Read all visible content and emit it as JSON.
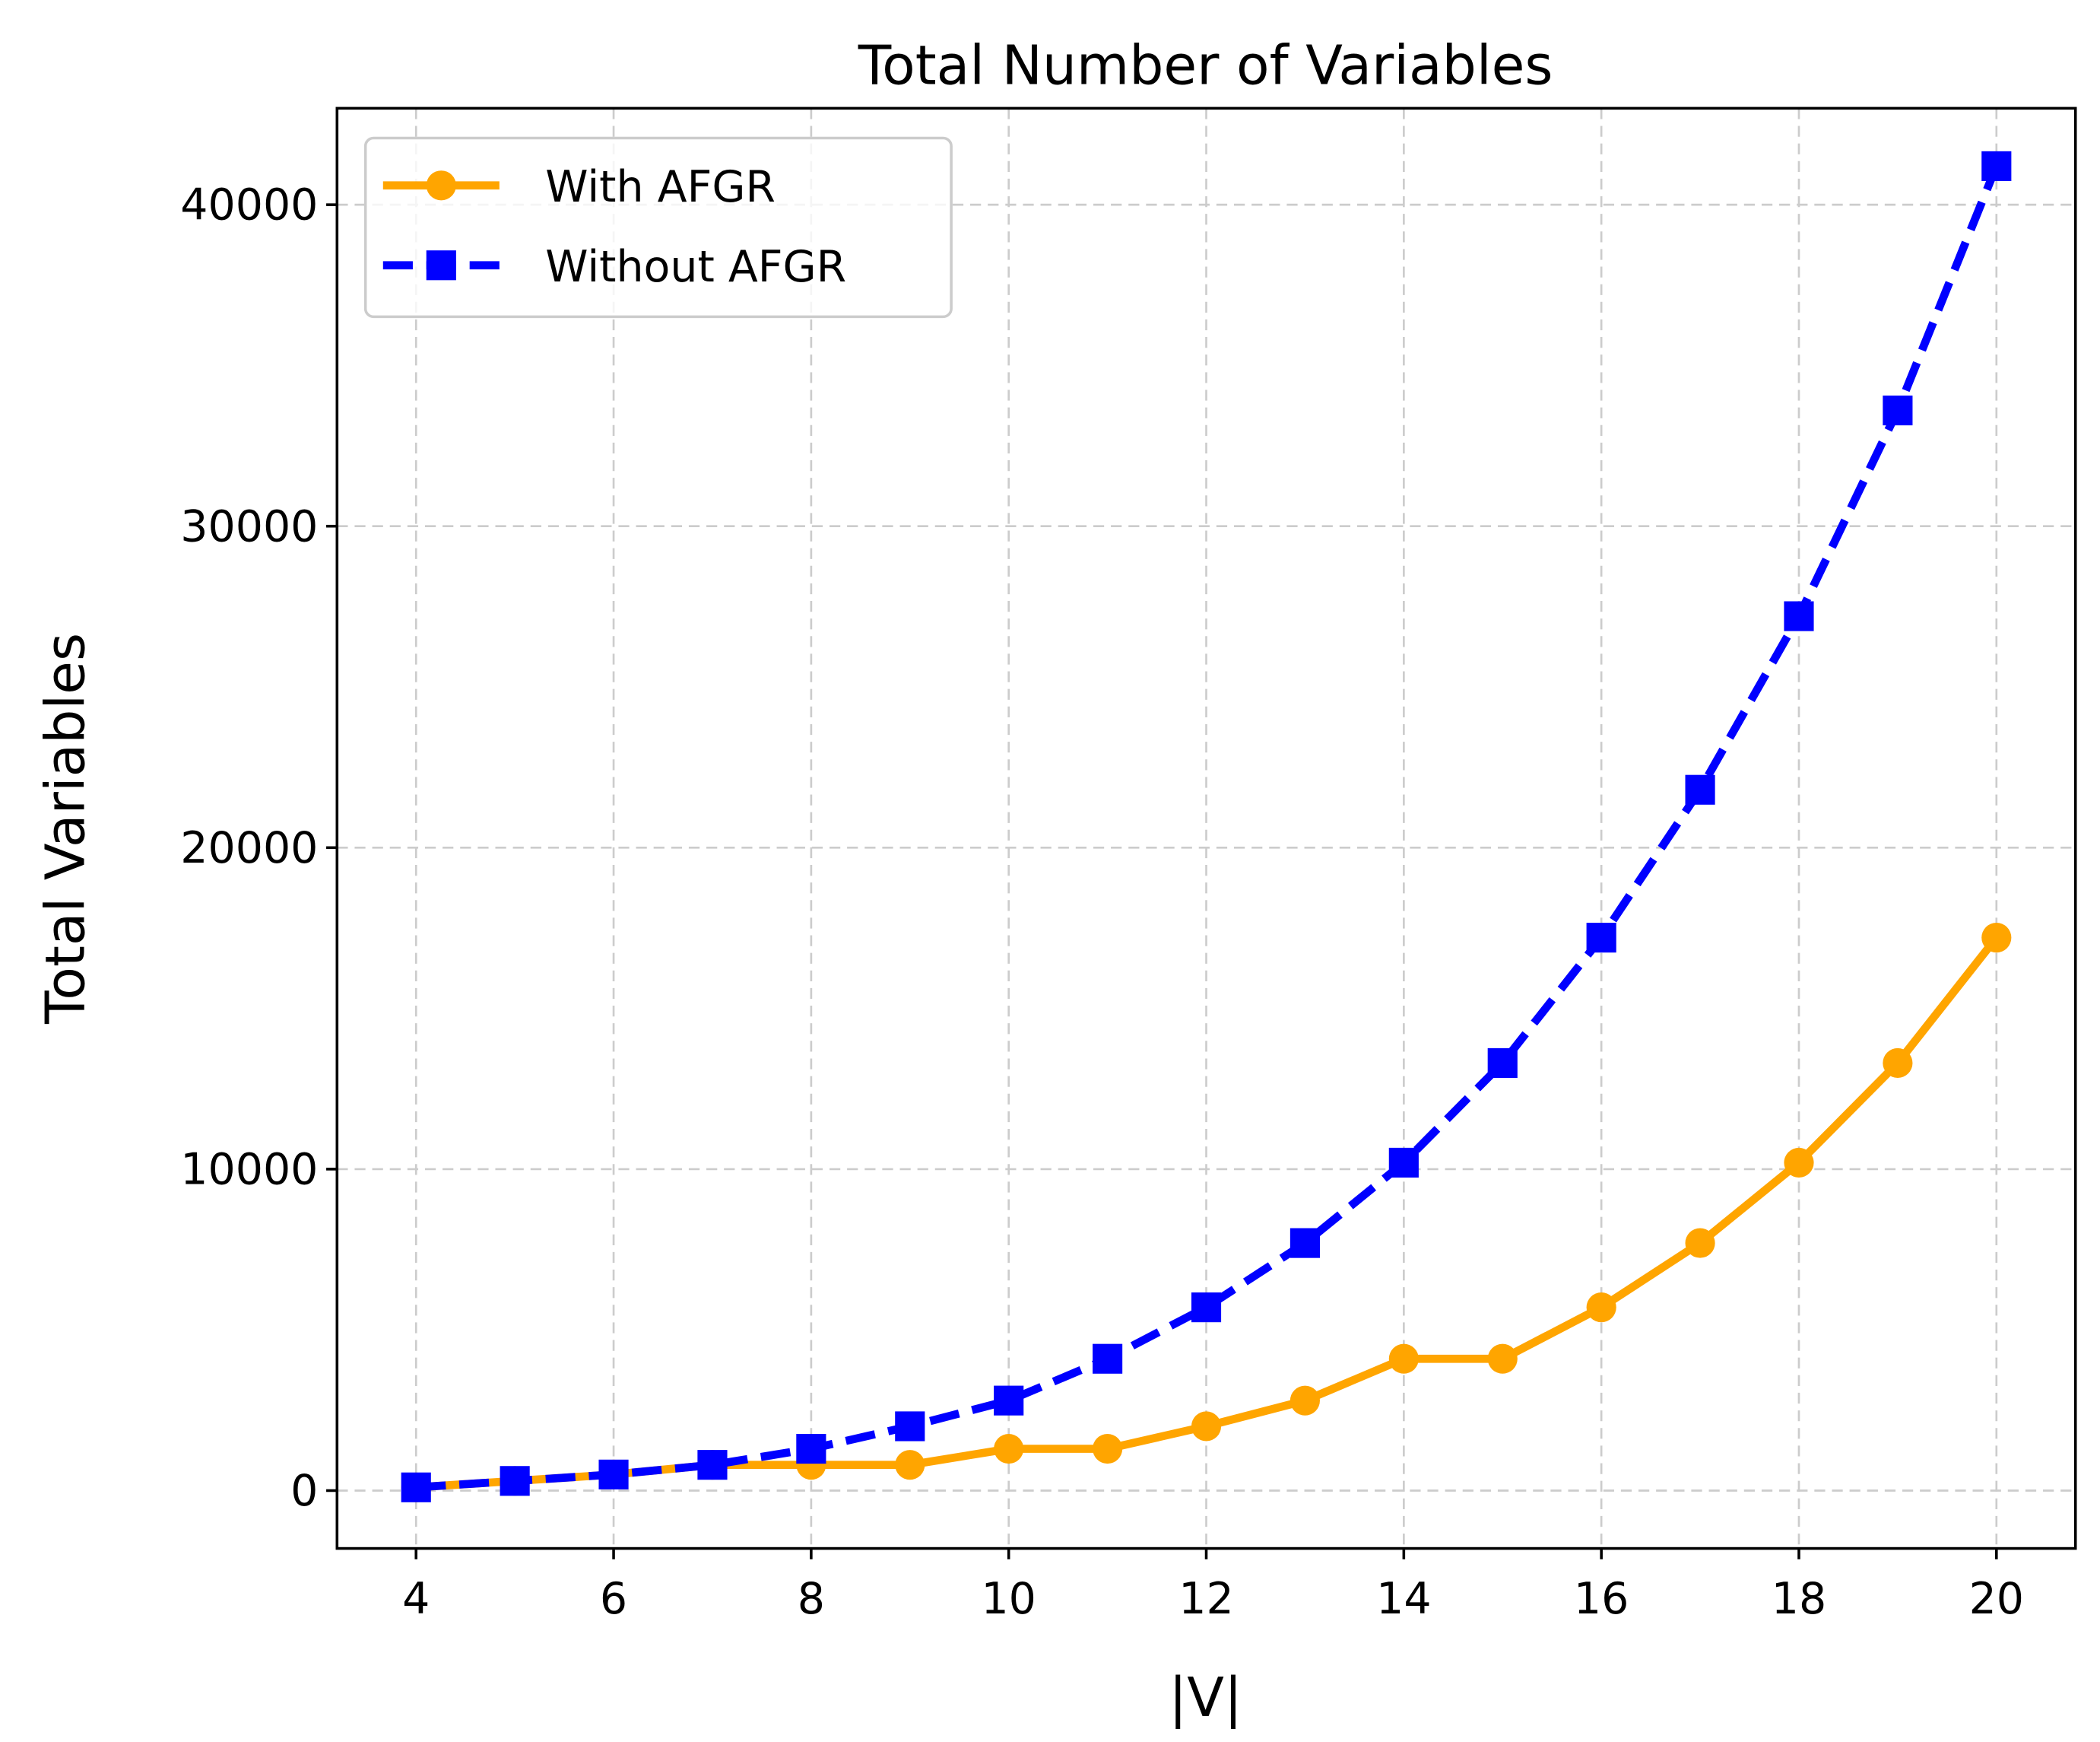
{
  "chart_data": {
    "type": "line",
    "title": "Total Number of Variables",
    "xlabel": "|V|",
    "ylabel": "Total Variables",
    "xlim": [
      3.2,
      20.8
    ],
    "ylim": [
      -1800,
      43000
    ],
    "xticks": [
      4,
      6,
      8,
      10,
      12,
      14,
      16,
      18,
      20
    ],
    "yticks": [
      0,
      10000,
      20000,
      30000,
      40000
    ],
    "grid": true,
    "legend": "top-left",
    "x": [
      4,
      5,
      6,
      7,
      8,
      9,
      10,
      11,
      12,
      13,
      14,
      15,
      16,
      17,
      18,
      19,
      20
    ],
    "series": [
      {
        "name": "With AFGR",
        "color": "#FFA500",
        "marker": "circle",
        "linestyle": "solid",
        "values": [
          100,
          300,
          500,
          800,
          800,
          800,
          1300,
          1300,
          2000,
          2800,
          4100,
          4100,
          5700,
          7700,
          10200,
          13300,
          17200
        ]
      },
      {
        "name": "Without AFGR",
        "color": "#0000FF",
        "marker": "square",
        "linestyle": "dashed",
        "values": [
          100,
          300,
          500,
          800,
          1300,
          2000,
          2800,
          4100,
          5700,
          7700,
          10200,
          13300,
          17200,
          21800,
          27200,
          33600,
          41200
        ]
      }
    ]
  }
}
